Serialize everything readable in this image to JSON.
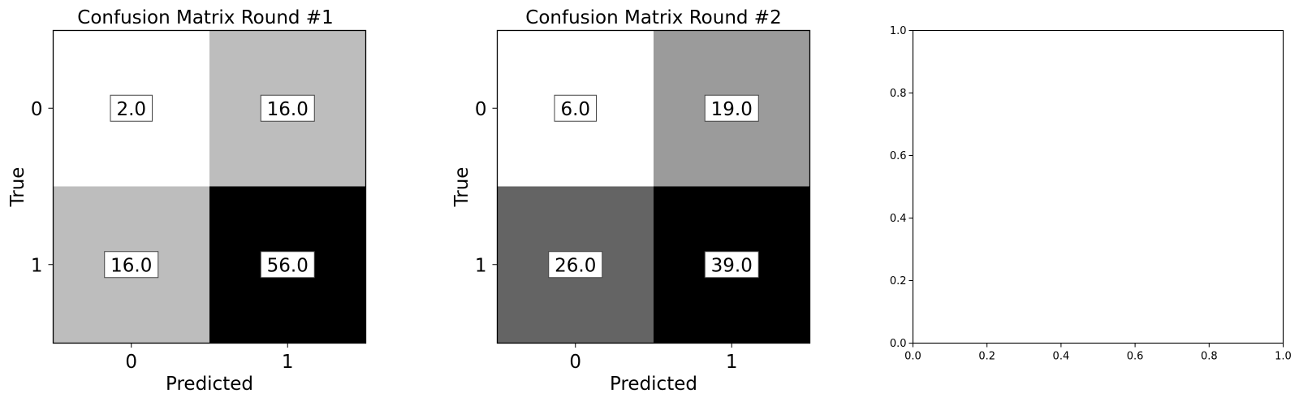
{
  "chart_data": [
    {
      "type": "heatmap",
      "title": "Confusion Matrix Round #1",
      "xlabel": "Predicted",
      "ylabel": "True",
      "x_tick_labels": [
        "0",
        "1"
      ],
      "y_tick_labels": [
        "0",
        "1"
      ],
      "values": [
        [
          2.0,
          16.0
        ],
        [
          16.0,
          56.0
        ]
      ],
      "cell_labels": [
        [
          "2.0",
          "16.0"
        ],
        [
          "16.0",
          "56.0"
        ]
      ],
      "colormap": "Greys",
      "grid": false
    },
    {
      "type": "heatmap",
      "title": "Confusion Matrix Round #2",
      "xlabel": "Predicted",
      "ylabel": "True",
      "x_tick_labels": [
        "0",
        "1"
      ],
      "y_tick_labels": [
        "0",
        "1"
      ],
      "values": [
        [
          6.0,
          19.0
        ],
        [
          26.0,
          39.0
        ]
      ],
      "cell_labels": [
        [
          "6.0",
          "19.0"
        ],
        [
          "26.0",
          "39.0"
        ]
      ],
      "colormap": "Greys",
      "grid": false
    },
    {
      "type": "line",
      "title": "",
      "xlabel": "",
      "ylabel": "",
      "xlim": [
        0.0,
        1.0
      ],
      "ylim": [
        0.0,
        1.0
      ],
      "x_tick_labels": [
        "0.0",
        "0.2",
        "0.4",
        "0.6",
        "0.8",
        "1.0"
      ],
      "y_tick_labels": [
        "0.0",
        "0.2",
        "0.4",
        "0.6",
        "0.8",
        "1.0"
      ],
      "series": [],
      "grid": false
    }
  ]
}
